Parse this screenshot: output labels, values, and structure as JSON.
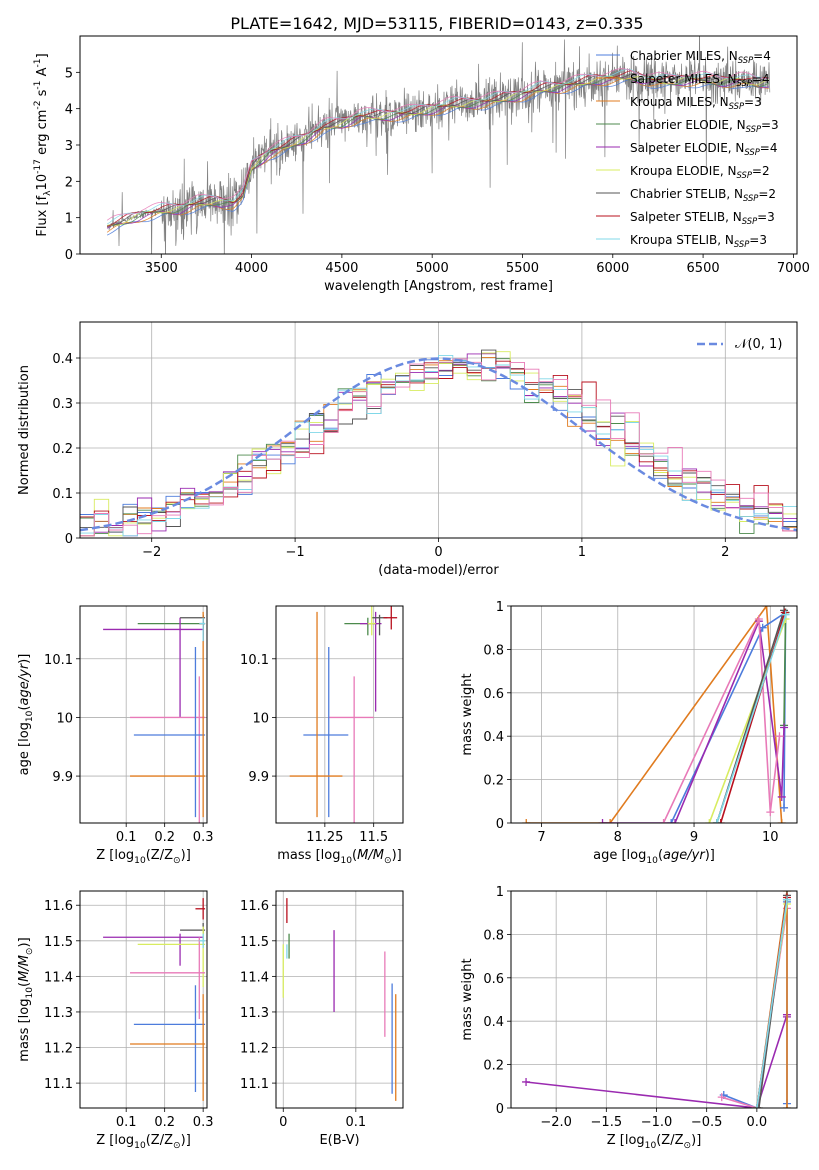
{
  "figure": {
    "title": "PLATE=1642, MJD=53115, FIBERID=0143, z=0.335"
  },
  "colors": {
    "data": "#808080",
    "models": [
      "#4d7cdc",
      "#e07b1f",
      "#ffffff",
      "#5a7a5a",
      "#9a2ab0",
      "#d8ec60",
      "#555555",
      "#b8101e",
      "#80d8e8"
    ],
    "pink": "#e87ab8",
    "green": "#4c8a4c",
    "normal_curve": "#6a8ae0"
  },
  "chart_data": [
    {
      "id": "spectrum",
      "type": "line",
      "xlabel": "wavelength [Angstrom, rest frame]",
      "ylabel": "Flux [f$_\\lambda$10$^{-17}$ erg cm$^{-2}$ s$^{-1}$ A$^{-1}$]",
      "xlim": [
        3050,
        7020
      ],
      "ylim": [
        0,
        6
      ],
      "xticks": [
        3500,
        4000,
        4500,
        5000,
        5500,
        6000,
        6500,
        7000
      ],
      "yticks": [
        0,
        1,
        2,
        3,
        4,
        5
      ],
      "grid": false,
      "legend_position": "top-right",
      "legend": [
        {
          "name": "Chabrier MILES, N",
          "sub": "SSP",
          "suffix": "=4",
          "color": "#4d7cdc"
        },
        {
          "name": "Salpeter MILES, N",
          "sub": "SSP",
          "suffix": "=4",
          "color": "#e07b1f"
        },
        {
          "name": "Kroupa MILES, N",
          "sub": "SSP",
          "suffix": "=3",
          "color": "#e07b1f"
        },
        {
          "name": "Chabrier ELODIE, N",
          "sub": "SSP",
          "suffix": "=3",
          "color": "#4c8a4c"
        },
        {
          "name": "Salpeter ELODIE, N",
          "sub": "SSP",
          "suffix": "=4",
          "color": "#9a2ab0"
        },
        {
          "name": "Kroupa ELODIE, N",
          "sub": "SSP",
          "suffix": "=2",
          "color": "#d8ec60"
        },
        {
          "name": "Chabrier STELIB, N",
          "sub": "SSP",
          "suffix": "=2",
          "color": "#555555"
        },
        {
          "name": "Salpeter STELIB, N",
          "sub": "SSP",
          "suffix": "=3",
          "color": "#b8101e"
        },
        {
          "name": "Kroupa STELIB, N",
          "sub": "SSP",
          "suffix": "=3",
          "color": "#80d8e8"
        }
      ],
      "continuum": {
        "x": [
          3200,
          3400,
          3500,
          3600,
          3700,
          3800,
          3900,
          3950,
          4000,
          4100,
          4200,
          4300,
          4400,
          4500,
          4600,
          4700,
          4800,
          4900,
          5000,
          5100,
          5200,
          5300,
          5400,
          5500,
          5600,
          5700,
          5800,
          5900,
          6000,
          6100,
          6200,
          6300,
          6400,
          6500,
          6600,
          6700,
          6800,
          6870
        ],
        "y": [
          0.75,
          1.1,
          1.2,
          1.25,
          1.4,
          1.45,
          1.4,
          1.6,
          2.4,
          2.8,
          3.0,
          3.2,
          3.5,
          3.6,
          3.8,
          3.8,
          3.85,
          3.9,
          4.0,
          4.1,
          4.15,
          4.2,
          4.3,
          4.4,
          4.55,
          4.6,
          4.7,
          4.8,
          4.85,
          4.9,
          4.8,
          4.75,
          4.8,
          4.8,
          4.75,
          4.8,
          4.7,
          4.75
        ]
      }
    },
    {
      "id": "residuals",
      "type": "histogram",
      "xlabel": "(data-model)/error",
      "ylabel": "Normed distribution",
      "xlim": [
        -2.5,
        2.5
      ],
      "ylim": [
        0,
        0.48
      ],
      "xticks": [
        -2,
        -1,
        0,
        1,
        2
      ],
      "xtick_labels": [
        "−2",
        "−1",
        "0",
        "1",
        "2"
      ],
      "yticks": [
        0,
        0.1,
        0.2,
        0.3,
        0.4
      ],
      "grid": true,
      "legend_position": "top-right",
      "legend": [
        {
          "name": "𝒩(0, 1)"
        }
      ],
      "bin_width": 0.1
    },
    {
      "id": "age_vs_Z",
      "type": "errorbar",
      "xlabel": "Z [log$_{10}$(Z/Z$_\\odot$)]",
      "ylabel": "age  [log$_{10}$($age/yr$)]",
      "xlim": [
        -0.02,
        0.31
      ],
      "ylim": [
        9.82,
        10.19
      ],
      "xticks": [
        0.1,
        0.2,
        0.3
      ],
      "yticks": [
        9.9,
        10.0,
        10.1
      ],
      "grid": true,
      "points": [
        {
          "x": 0.3,
          "y": 10.16,
          "xerr": [
            0.17,
            0.005
          ],
          "yerr": [
            0.02,
            0.01
          ],
          "color": "#4c8a4c"
        },
        {
          "x": 0.24,
          "y": 10.15,
          "xerr": [
            0.2,
            0.06
          ],
          "yerr": [
            0.15,
            0.02
          ],
          "color": "#9a2ab0"
        },
        {
          "x": 0.3,
          "y": 10.17,
          "xerr": [
            0.06,
            0.005
          ],
          "yerr": [
            0.02,
            0.005
          ],
          "color": "#555555"
        },
        {
          "x": 0.29,
          "y": 10.0,
          "xerr": [
            0.18,
            0.015
          ],
          "yerr": [
            0.18,
            0.07
          ],
          "color": "#e87ab8"
        },
        {
          "x": 0.28,
          "y": 9.97,
          "xerr": [
            0.16,
            0.025
          ],
          "yerr": [
            0.14,
            0.15
          ],
          "color": "#4d7cdc"
        },
        {
          "x": 0.3,
          "y": 9.9,
          "xerr": [
            0.19,
            0.005
          ],
          "yerr": [
            0.07,
            0.28
          ],
          "color": "#e07b1f"
        },
        {
          "x": 0.3,
          "y": 10.16,
          "xerr": [
            0.01,
            0.005
          ],
          "yerr": [
            0.03,
            0.01
          ],
          "color": "#b8101e"
        },
        {
          "x": 0.3,
          "y": 10.16,
          "xerr": [
            0.01,
            0.005
          ],
          "yerr": [
            0.03,
            0.01
          ],
          "color": "#80d8e8"
        }
      ]
    },
    {
      "id": "age_vs_mass",
      "type": "errorbar",
      "xlabel": "mass [log$_{10}$($M/M_\\odot$)]",
      "ylabel": "",
      "xlim": [
        11.0,
        11.65
      ],
      "ylim": [
        9.82,
        10.19
      ],
      "xticks": [
        11.25,
        11.5
      ],
      "yticks": [
        9.9,
        10.0,
        10.1
      ],
      "grid": true,
      "points": [
        {
          "x": 11.47,
          "y": 10.16,
          "xerr": [
            0.12,
            0.05
          ],
          "yerr": [
            0.02,
            0.01
          ],
          "color": "#4c8a4c"
        },
        {
          "x": 11.51,
          "y": 10.16,
          "xerr": [
            0.08,
            0.03
          ],
          "yerr": [
            0.15,
            0.02
          ],
          "color": "#9a2ab0"
        },
        {
          "x": 11.53,
          "y": 10.17,
          "xerr": [
            0.04,
            0.04
          ],
          "yerr": [
            0.03,
            0.005
          ],
          "color": "#555555"
        },
        {
          "x": 11.4,
          "y": 10.0,
          "xerr": [
            0.13,
            0.1
          ],
          "yerr": [
            0.18,
            0.07
          ],
          "color": "#e87ab8"
        },
        {
          "x": 11.27,
          "y": 9.97,
          "xerr": [
            0.13,
            0.1
          ],
          "yerr": [
            0.14,
            0.15
          ],
          "color": "#4d7cdc"
        },
        {
          "x": 11.21,
          "y": 9.9,
          "xerr": [
            0.14,
            0.13
          ],
          "yerr": [
            0.07,
            0.28
          ],
          "color": "#e07b1f"
        },
        {
          "x": 11.59,
          "y": 10.17,
          "xerr": [
            0.04,
            0.03
          ],
          "yerr": [
            0.02,
            0.06
          ],
          "color": "#b8101e"
        },
        {
          "x": 11.49,
          "y": 10.16,
          "xerr": [
            0.02,
            0.02
          ],
          "yerr": [
            0.02,
            0.05
          ],
          "color": "#d8ec60"
        }
      ]
    },
    {
      "id": "massweight_vs_age",
      "type": "line",
      "xlabel": "age  [log$_{10}$($age/yr$)]",
      "ylabel": "mass weight",
      "xlim": [
        6.6,
        10.35
      ],
      "ylim": [
        0,
        1.0
      ],
      "xticks": [
        7,
        8,
        9,
        10
      ],
      "yticks": [
        0.0,
        0.2,
        0.4,
        0.6,
        0.8,
        1.0
      ],
      "grid": true,
      "series": [
        {
          "color": "#e07b1f",
          "x": [
            6.8,
            7.9,
            9.95,
            10.15
          ],
          "y": [
            0.0,
            0.0,
            1.0,
            0.0
          ]
        },
        {
          "color": "#4d7cdc",
          "x": [
            8.7,
            9.9,
            10.2,
            10.18
          ],
          "y": [
            0.0,
            0.9,
            0.97,
            0.07
          ]
        },
        {
          "color": "#4c8a4c",
          "x": [
            9.3,
            10.2,
            10.18
          ],
          "y": [
            0.0,
            0.97,
            0.45
          ]
        },
        {
          "color": "#9a2ab0",
          "x": [
            7.8,
            8.75,
            9.85,
            10.15,
            10.18
          ],
          "y": [
            0.0,
            0.0,
            0.93,
            0.12,
            0.44
          ]
        },
        {
          "color": "#e87ab8",
          "x": [
            8.6,
            9.85,
            10.0,
            10.12
          ],
          "y": [
            0.0,
            0.94,
            0.05,
            0.4
          ]
        },
        {
          "color": "#d8ec60",
          "x": [
            9.2,
            10.2
          ],
          "y": [
            0.0,
            0.94
          ]
        },
        {
          "color": "#555555",
          "x": [
            9.3,
            10.18
          ],
          "y": [
            0.0,
            0.98
          ]
        },
        {
          "color": "#b8101e",
          "x": [
            9.35,
            10.19
          ],
          "y": [
            0.0,
            0.97
          ]
        },
        {
          "color": "#80d8e8",
          "x": [
            9.3,
            10.2
          ],
          "y": [
            0.0,
            0.96
          ]
        }
      ]
    },
    {
      "id": "mass_vs_Z",
      "type": "errorbar",
      "xlabel": "Z [log$_{10}$(Z/Z$_\\odot$)]",
      "ylabel": "mass [log$_{10}$($M/M_\\odot$)]",
      "xlim": [
        -0.02,
        0.31
      ],
      "ylim": [
        11.03,
        11.64
      ],
      "xticks": [
        0.1,
        0.2,
        0.3
      ],
      "yticks": [
        11.1,
        11.2,
        11.3,
        11.4,
        11.5,
        11.6
      ],
      "grid": true,
      "points": [
        {
          "x": 0.3,
          "y": 11.59,
          "xerr": [
            0.02,
            0.005
          ],
          "yerr": [
            0.03,
            0.03
          ],
          "color": "#b8101e"
        },
        {
          "x": 0.3,
          "y": 11.53,
          "xerr": [
            0.06,
            0.005
          ],
          "yerr": [
            0.01,
            0.02
          ],
          "color": "#555555"
        },
        {
          "x": 0.24,
          "y": 11.51,
          "xerr": [
            0.2,
            0.06
          ],
          "yerr": [
            0.08,
            0.01
          ],
          "color": "#9a2ab0"
        },
        {
          "x": 0.3,
          "y": 11.49,
          "xerr": [
            0.17,
            0.005
          ],
          "yerr": [
            0.12,
            0.05
          ],
          "color": "#d8ec60"
        },
        {
          "x": 0.29,
          "y": 11.41,
          "xerr": [
            0.18,
            0.015
          ],
          "yerr": [
            0.13,
            0.1
          ],
          "color": "#e87ab8"
        },
        {
          "x": 0.28,
          "y": 11.265,
          "xerr": [
            0.16,
            0.025
          ],
          "yerr": [
            0.19,
            0.11
          ],
          "color": "#4d7cdc"
        },
        {
          "x": 0.3,
          "y": 11.21,
          "xerr": [
            0.19,
            0.005
          ],
          "yerr": [
            0.16,
            0.14
          ],
          "color": "#e07b1f"
        },
        {
          "x": 0.3,
          "y": 11.5,
          "xerr": [
            0.01,
            0.005
          ],
          "yerr": [
            0.02,
            0.02
          ],
          "color": "#80d8e8"
        }
      ]
    },
    {
      "id": "mass_vs_ebv",
      "type": "errorbar",
      "xlabel": "E(B-V)",
      "ylabel": "",
      "xlim": [
        -0.01,
        0.165
      ],
      "ylim": [
        11.03,
        11.64
      ],
      "xticks": [
        0.0,
        0.1
      ],
      "yticks": [
        11.1,
        11.2,
        11.3,
        11.4,
        11.5,
        11.6
      ],
      "grid": true,
      "points": [
        {
          "x": 0.0,
          "y": 11.42,
          "yerr": [
            0.08,
            0.07
          ],
          "color": "#d8ec60"
        },
        {
          "x": 0.005,
          "y": 11.59,
          "yerr": [
            0.04,
            0.03
          ],
          "color": "#b8101e"
        },
        {
          "x": 0.008,
          "y": 11.49,
          "yerr": [
            0.04,
            0.03
          ],
          "color": "#4c8a4c"
        },
        {
          "x": 0.005,
          "y": 11.47,
          "yerr": [
            0.02,
            0.02
          ],
          "color": "#80d8e8"
        },
        {
          "x": 0.07,
          "y": 11.41,
          "yerr": [
            0.11,
            0.12
          ],
          "color": "#9a2ab0"
        },
        {
          "x": 0.14,
          "y": 11.35,
          "yerr": [
            0.12,
            0.12
          ],
          "color": "#e87ab8"
        },
        {
          "x": 0.15,
          "y": 11.22,
          "yerr": [
            0.15,
            0.16
          ],
          "color": "#4d7cdc"
        },
        {
          "x": 0.155,
          "y": 11.2,
          "yerr": [
            0.15,
            0.15
          ],
          "color": "#e07b1f"
        }
      ]
    },
    {
      "id": "massweight_vs_Z",
      "type": "line",
      "xlabel": "Z [log$_{10}$(Z/Z$_\\odot$)]",
      "ylabel": "mass weight",
      "xlim": [
        -2.45,
        0.4
      ],
      "ylim": [
        0,
        1.0
      ],
      "xticks": [
        -2.0,
        -1.5,
        -1.0,
        -0.5,
        0.0
      ],
      "xtick_labels": [
        "−2.0",
        "−1.5",
        "−1.0",
        "−0.5",
        "0.0"
      ],
      "yticks": [
        0.0,
        0.2,
        0.4,
        0.6,
        0.8,
        1.0
      ],
      "grid": true,
      "series": [
        {
          "color": "#9a2ab0",
          "x": [
            -2.3,
            0.0,
            0.3,
            0.3
          ],
          "y": [
            0.12,
            0.0,
            0.43,
            0.42
          ]
        },
        {
          "color": "#4d7cdc",
          "x": [
            -0.33,
            0.0,
            0.3,
            0.3
          ],
          "y": [
            0.06,
            0.0,
            0.95,
            0.02
          ]
        },
        {
          "color": "#e87ab8",
          "x": [
            -0.35,
            0.0,
            0.3
          ],
          "y": [
            0.05,
            0.0,
            0.92
          ]
        },
        {
          "color": "#e07b1f",
          "x": [
            0.0,
            0.3,
            0.3
          ],
          "y": [
            0.0,
            1.0,
            0.0
          ]
        },
        {
          "color": "#4c8a4c",
          "x": [
            0.0,
            0.3
          ],
          "y": [
            0.0,
            0.96
          ]
        },
        {
          "color": "#d8ec60",
          "x": [
            0.0,
            0.3
          ],
          "y": [
            0.0,
            0.94
          ]
        },
        {
          "color": "#555555",
          "x": [
            0.02,
            0.3
          ],
          "y": [
            0.0,
            0.98
          ]
        },
        {
          "color": "#b8101e",
          "x": [
            0.0,
            0.3
          ],
          "y": [
            0.0,
            0.97
          ]
        },
        {
          "color": "#80d8e8",
          "x": [
            0.0,
            0.3
          ],
          "y": [
            0.0,
            0.96
          ]
        }
      ]
    }
  ]
}
